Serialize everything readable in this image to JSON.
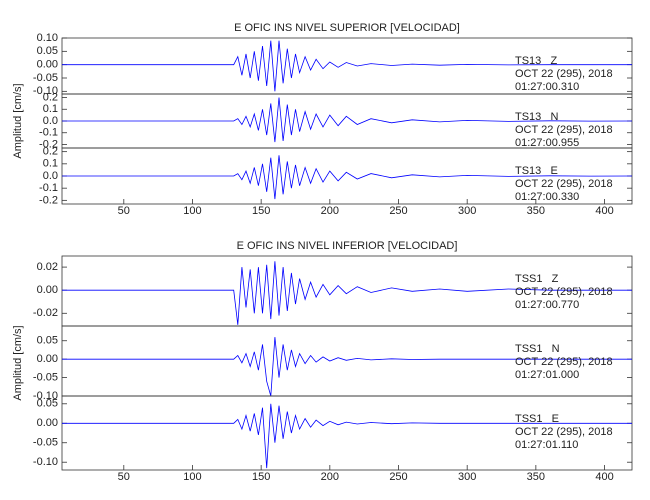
{
  "chart_data": [
    {
      "type": "line",
      "title": "E OFIC INS NIVEL SUPERIOR [VELOCIDAD]",
      "station": "TS13   Z",
      "date": "OCT 22 (295), 2018",
      "time": "01:27:00.310",
      "xlim": [
        5,
        420
      ],
      "ylim": [
        -0.11,
        0.1
      ],
      "yticks": [
        {
          "value": 0.1,
          "label": "0.10"
        },
        0.05,
        {
          "value": 0,
          "label": "0.00"
        },
        -0.05,
        {
          "value": -0.1,
          "label": "-0.10"
        }
      ],
      "color": "#0000ff",
      "x": [
        5,
        60,
        100,
        130,
        133,
        136,
        139,
        142,
        145,
        148,
        151,
        154,
        157,
        160,
        163,
        166,
        169,
        172,
        175,
        178,
        182,
        186,
        190,
        195,
        200,
        206,
        212,
        220,
        230,
        245,
        260,
        280,
        300,
        330,
        360,
        390,
        420
      ],
      "values": [
        0,
        0,
        0,
        0,
        0.03,
        -0.04,
        0.04,
        -0.05,
        0.05,
        -0.06,
        0.07,
        -0.08,
        0.09,
        -0.1,
        0.09,
        -0.07,
        0.06,
        -0.05,
        0.04,
        -0.03,
        0.03,
        -0.02,
        0.02,
        -0.015,
        0.01,
        -0.01,
        0.008,
        -0.005,
        0.004,
        -0.003,
        0.002,
        -0.002,
        0.001,
        -0.001,
        0,
        0,
        0
      ]
    },
    {
      "type": "line",
      "ylabel": "Amplitud [cm/s]",
      "station": "TS13   N",
      "date": "OCT 22 (295), 2018",
      "time": "01:27:00.955",
      "xlim": [
        5,
        420
      ],
      "ylim": [
        -0.23,
        0.23
      ],
      "yticks": [
        0.2,
        0.1,
        {
          "value": 0,
          "label": "0.0"
        },
        -0.1,
        -0.2
      ],
      "color": "#0000ff",
      "x": [
        5,
        60,
        100,
        130,
        133,
        136,
        139,
        142,
        145,
        148,
        151,
        154,
        157,
        160,
        163,
        166,
        169,
        172,
        175,
        178,
        182,
        186,
        190,
        195,
        200,
        206,
        212,
        220,
        230,
        245,
        260,
        280,
        300,
        330,
        360,
        390,
        420
      ],
      "values": [
        0,
        0,
        0,
        0,
        0.02,
        -0.03,
        0.04,
        -0.05,
        0.06,
        -0.08,
        0.1,
        -0.12,
        0.15,
        -0.18,
        0.2,
        -0.17,
        0.14,
        -0.12,
        0.1,
        -0.09,
        0.08,
        -0.07,
        0.06,
        -0.05,
        0.05,
        -0.04,
        0.04,
        -0.03,
        0.02,
        -0.015,
        0.01,
        -0.008,
        0.005,
        -0.003,
        0.002,
        -0.001,
        0
      ]
    },
    {
      "type": "line",
      "station": "TS13   E",
      "date": "OCT 22 (295), 2018",
      "time": "01:27:00.330",
      "xlim": [
        5,
        420
      ],
      "ylim": [
        -0.23,
        0.23
      ],
      "yticks": [
        0.2,
        0.1,
        {
          "value": 0,
          "label": "0.0"
        },
        -0.1,
        -0.2
      ],
      "xticks": [
        50,
        100,
        150,
        200,
        250,
        300,
        350,
        400
      ],
      "color": "#0000ff",
      "x": [
        5,
        60,
        100,
        130,
        133,
        136,
        139,
        142,
        145,
        148,
        151,
        154,
        157,
        160,
        163,
        166,
        169,
        172,
        175,
        178,
        182,
        186,
        190,
        195,
        200,
        206,
        212,
        220,
        230,
        245,
        260,
        280,
        300,
        330,
        360,
        390,
        420
      ],
      "values": [
        0,
        0,
        0,
        0,
        0.02,
        -0.03,
        0.04,
        -0.06,
        0.07,
        -0.08,
        0.1,
        -0.13,
        0.15,
        -0.19,
        0.17,
        -0.15,
        0.12,
        -0.1,
        0.09,
        -0.08,
        0.07,
        -0.06,
        0.06,
        -0.05,
        0.04,
        -0.04,
        0.03,
        -0.025,
        0.02,
        -0.015,
        0.01,
        -0.007,
        0.005,
        -0.003,
        0.002,
        -0.001,
        0
      ]
    },
    {
      "type": "line",
      "title": "E OFIC INS NIVEL INFERIOR [VELOCIDAD]",
      "station": "TSS1   Z",
      "date": "OCT 22 (295), 2018",
      "time": "01:27:00.770",
      "xlim": [
        5,
        420
      ],
      "ylim": [
        -0.031,
        0.0296
      ],
      "yticks": [
        0.02,
        {
          "value": 0,
          "label": "0.00"
        },
        -0.02
      ],
      "color": "#0000ff",
      "x": [
        5,
        60,
        100,
        130,
        133,
        136,
        139,
        142,
        145,
        148,
        151,
        154,
        157,
        160,
        163,
        166,
        169,
        172,
        175,
        178,
        182,
        186,
        190,
        195,
        200,
        206,
        212,
        220,
        230,
        245,
        260,
        280,
        300,
        330,
        360,
        390,
        420
      ],
      "values": [
        0,
        0,
        0,
        0,
        -0.03,
        0.02,
        -0.015,
        0.018,
        -0.02,
        0.02,
        -0.02,
        0.022,
        -0.025,
        0.025,
        -0.022,
        0.02,
        -0.018,
        0.015,
        -0.012,
        0.01,
        -0.008,
        0.007,
        -0.006,
        0.005,
        -0.004,
        0.004,
        -0.003,
        0.003,
        -0.002,
        0.002,
        -0.001,
        0.001,
        -0.001,
        0.001,
        0,
        0,
        0
      ]
    },
    {
      "type": "line",
      "ylabel": "Amplitud [cm/s]",
      "station": "TSS1   N",
      "date": "OCT 22 (295), 2018",
      "time": "01:27:01.000",
      "xlim": [
        5,
        420
      ],
      "ylim": [
        -0.1,
        0.09
      ],
      "yticks": [
        0.05,
        {
          "value": 0,
          "label": "0.00"
        },
        -0.05,
        {
          "value": -0.1,
          "label": "-0.10"
        }
      ],
      "color": "#0000ff",
      "x": [
        5,
        60,
        100,
        130,
        133,
        136,
        139,
        142,
        145,
        148,
        151,
        154,
        157,
        160,
        163,
        166,
        169,
        172,
        175,
        178,
        182,
        186,
        190,
        195,
        200,
        206,
        212,
        220,
        230,
        245,
        260,
        280,
        300,
        330,
        360,
        390,
        420
      ],
      "values": [
        0,
        0,
        0,
        0,
        0.01,
        -0.01,
        0.015,
        -0.02,
        0.02,
        -0.03,
        0.04,
        -0.06,
        -0.1,
        0.06,
        -0.05,
        0.04,
        -0.03,
        0.025,
        -0.02,
        0.015,
        -0.012,
        0.01,
        -0.008,
        0.006,
        -0.005,
        0.004,
        -0.003,
        0.002,
        -0.002,
        0.001,
        -0.001,
        0,
        0,
        0,
        0,
        0,
        0
      ]
    },
    {
      "type": "line",
      "station": "TSS1   E",
      "date": "OCT 22 (295), 2018",
      "time": "01:27:01.110",
      "xlim": [
        5,
        420
      ],
      "ylim": [
        -0.12,
        0.07
      ],
      "yticks": [
        0.05,
        {
          "value": 0,
          "label": "0.00"
        },
        -0.05,
        {
          "value": -0.1,
          "label": "-0.10"
        }
      ],
      "xticks": [
        50,
        100,
        150,
        200,
        250,
        300,
        350,
        400
      ],
      "color": "#0000ff",
      "x": [
        5,
        60,
        100,
        130,
        133,
        136,
        139,
        142,
        145,
        148,
        151,
        154,
        157,
        160,
        163,
        166,
        169,
        172,
        175,
        178,
        182,
        186,
        190,
        195,
        200,
        206,
        212,
        220,
        230,
        245,
        260,
        280,
        300,
        330,
        360,
        390,
        420
      ],
      "values": [
        0,
        0,
        0,
        0,
        0.01,
        -0.015,
        0.02,
        -0.02,
        0.025,
        -0.03,
        0.04,
        -0.115,
        0.05,
        -0.05,
        0.045,
        -0.04,
        0.03,
        -0.025,
        0.02,
        -0.015,
        0.012,
        -0.01,
        0.008,
        -0.006,
        0.005,
        -0.004,
        0.003,
        -0.002,
        0.002,
        -0.001,
        0.001,
        0,
        0,
        0,
        0,
        0,
        0
      ]
    }
  ]
}
